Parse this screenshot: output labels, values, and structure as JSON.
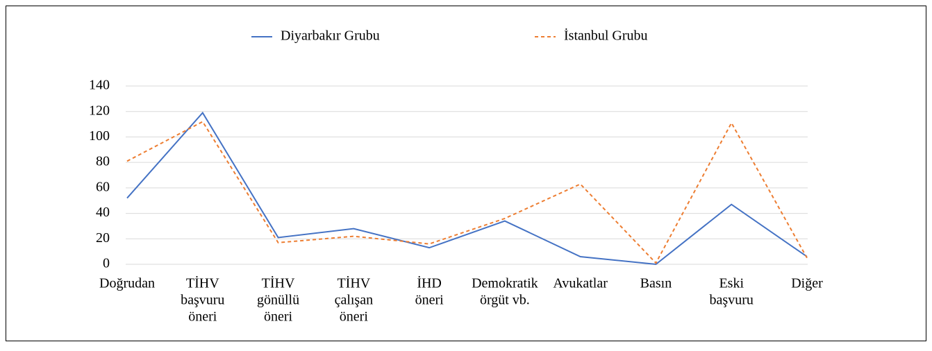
{
  "chart_data": {
    "type": "line",
    "categories": [
      [
        "Doğrudan"
      ],
      [
        "TİHV",
        "başvuru",
        "öneri"
      ],
      [
        "TİHV",
        "gönüllü",
        "öneri"
      ],
      [
        "TİHV",
        "çalışan",
        "öneri"
      ],
      [
        "İHD",
        "öneri"
      ],
      [
        "Demokratik",
        "örgüt vb."
      ],
      [
        "Avukatlar"
      ],
      [
        "Basın"
      ],
      [
        "Eski",
        "başvuru"
      ],
      [
        "Diğer"
      ]
    ],
    "series": [
      {
        "name": "Diyarbakır Grubu",
        "color": "#4472c4",
        "dash": false,
        "values": [
          52,
          119,
          21,
          28,
          13,
          34,
          6,
          0,
          47,
          6
        ]
      },
      {
        "name": "İstanbul Grubu",
        "color": "#ed7d31",
        "dash": true,
        "values": [
          81,
          112,
          17,
          22,
          16,
          36,
          63,
          1,
          111,
          5
        ]
      }
    ],
    "ylim": [
      0,
      140
    ],
    "yticks": [
      0,
      20,
      40,
      60,
      80,
      100,
      120,
      140
    ],
    "grid": true,
    "legend": "top"
  }
}
